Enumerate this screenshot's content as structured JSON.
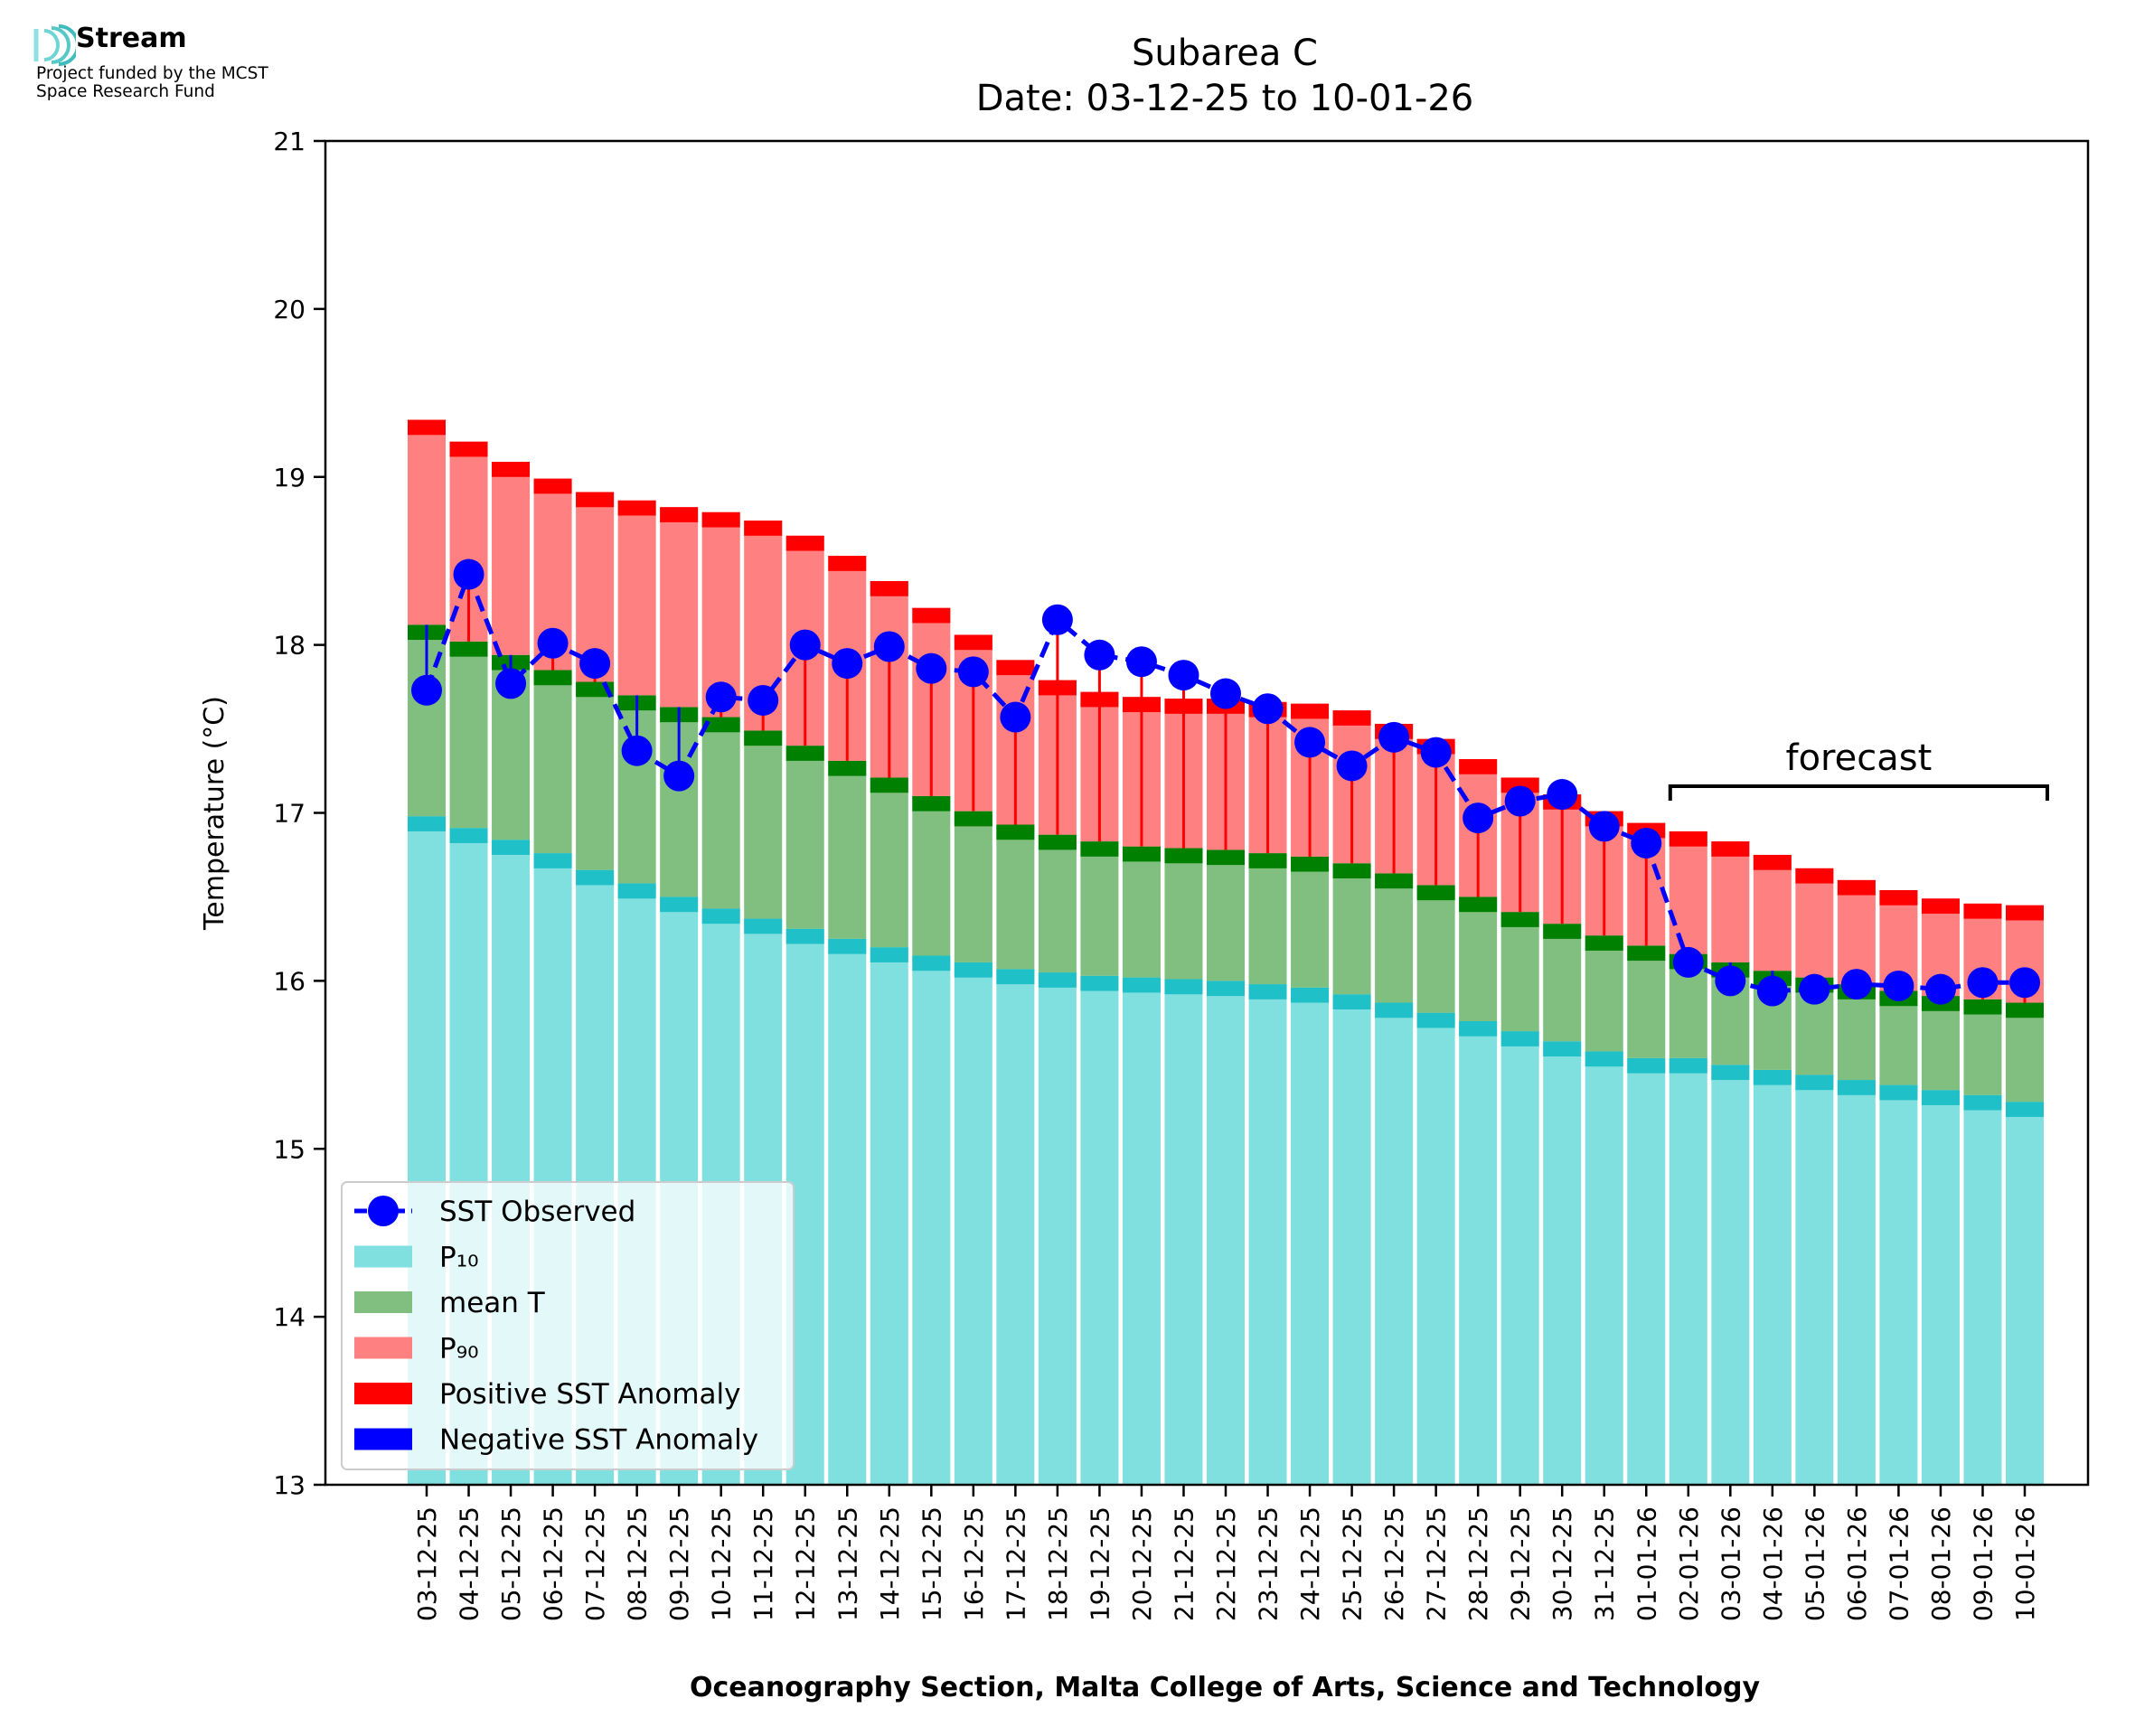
{
  "logo": {
    "name": "Stream",
    "caption_line1": "Project funded by the MCST",
    "caption_line2": "Space Research Fund"
  },
  "chart_data": {
    "type": "bar",
    "title": "Subarea C",
    "subtitle": "Date: 03-12-25 to 10-01-26",
    "xlabel": "Oceanography Section, Malta College of Arts, Science and Technology",
    "ylabel": "Temperature (°C)",
    "ylim": [
      13,
      21
    ],
    "yticks": [
      13,
      14,
      15,
      16,
      17,
      18,
      19,
      20,
      21
    ],
    "grid": false,
    "legend_position": "lower-left",
    "colors": {
      "p10": "#80dfdf",
      "p10_edge": "#1fc0c8",
      "mean": "#80bf80",
      "mean_edge": "#008000",
      "p90": "#ff8080",
      "p90_edge": "#ff0000",
      "positive_anomaly": "#ff0000",
      "negative_anomaly": "#0000ff",
      "sst": "#0000ff"
    },
    "categories": [
      "03-12-25",
      "04-12-25",
      "05-12-25",
      "06-12-25",
      "07-12-25",
      "08-12-25",
      "09-12-25",
      "10-12-25",
      "11-12-25",
      "12-12-25",
      "13-12-25",
      "14-12-25",
      "15-12-25",
      "16-12-25",
      "17-12-25",
      "18-12-25",
      "19-12-25",
      "20-12-25",
      "21-12-25",
      "22-12-25",
      "23-12-25",
      "24-12-25",
      "25-12-25",
      "26-12-25",
      "27-12-25",
      "28-12-25",
      "29-12-25",
      "30-12-25",
      "31-12-25",
      "01-01-26",
      "02-01-26",
      "03-01-26",
      "04-01-26",
      "05-01-26",
      "06-01-26",
      "07-01-26",
      "08-01-26",
      "09-01-26",
      "10-01-26"
    ],
    "series": [
      {
        "name": "P10",
        "values": [
          16.98,
          16.91,
          16.84,
          16.76,
          16.66,
          16.58,
          16.5,
          16.43,
          16.37,
          16.31,
          16.25,
          16.2,
          16.15,
          16.11,
          16.07,
          16.05,
          16.03,
          16.02,
          16.01,
          16.0,
          15.98,
          15.96,
          15.92,
          15.87,
          15.81,
          15.76,
          15.7,
          15.64,
          15.58,
          15.54,
          15.54,
          15.5,
          15.47,
          15.44,
          15.41,
          15.38,
          15.35,
          15.32,
          15.28
        ]
      },
      {
        "name": "mean T",
        "values": [
          18.12,
          18.02,
          17.94,
          17.85,
          17.78,
          17.7,
          17.63,
          17.57,
          17.49,
          17.4,
          17.31,
          17.21,
          17.1,
          17.01,
          16.93,
          16.87,
          16.83,
          16.8,
          16.79,
          16.78,
          16.76,
          16.74,
          16.7,
          16.64,
          16.57,
          16.5,
          16.41,
          16.34,
          16.27,
          16.21,
          16.16,
          16.11,
          16.06,
          16.02,
          15.98,
          15.94,
          15.91,
          15.89,
          15.87
        ]
      },
      {
        "name": "P90",
        "values": [
          19.34,
          19.21,
          19.09,
          18.99,
          18.91,
          18.86,
          18.82,
          18.79,
          18.74,
          18.65,
          18.53,
          18.38,
          18.22,
          18.06,
          17.91,
          17.79,
          17.72,
          17.69,
          17.68,
          17.68,
          17.66,
          17.65,
          17.61,
          17.53,
          17.44,
          17.32,
          17.21,
          17.11,
          17.01,
          16.94,
          16.89,
          16.83,
          16.75,
          16.67,
          16.6,
          16.54,
          16.49,
          16.46,
          16.45
        ]
      },
      {
        "name": "SST Observed",
        "values": [
          17.73,
          18.42,
          17.77,
          18.01,
          17.89,
          17.37,
          17.22,
          17.69,
          17.67,
          18.0,
          17.89,
          17.99,
          17.86,
          17.84,
          17.57,
          18.15,
          17.94,
          17.9,
          17.82,
          17.71,
          17.62,
          17.42,
          17.28,
          17.45,
          17.36,
          16.97,
          17.07,
          17.11,
          16.92,
          16.82,
          16.11,
          16.0,
          15.94,
          15.95,
          15.98,
          15.97,
          15.95,
          15.99,
          15.99
        ]
      }
    ],
    "legend": [
      "SST Observed",
      "P₁₀",
      "mean T",
      "P₉₀",
      "Positive SST Anomaly",
      "Negative SST Anomaly"
    ],
    "annotation": "forecast",
    "forecast_range": [
      "02-01-26",
      "10-01-26"
    ]
  }
}
